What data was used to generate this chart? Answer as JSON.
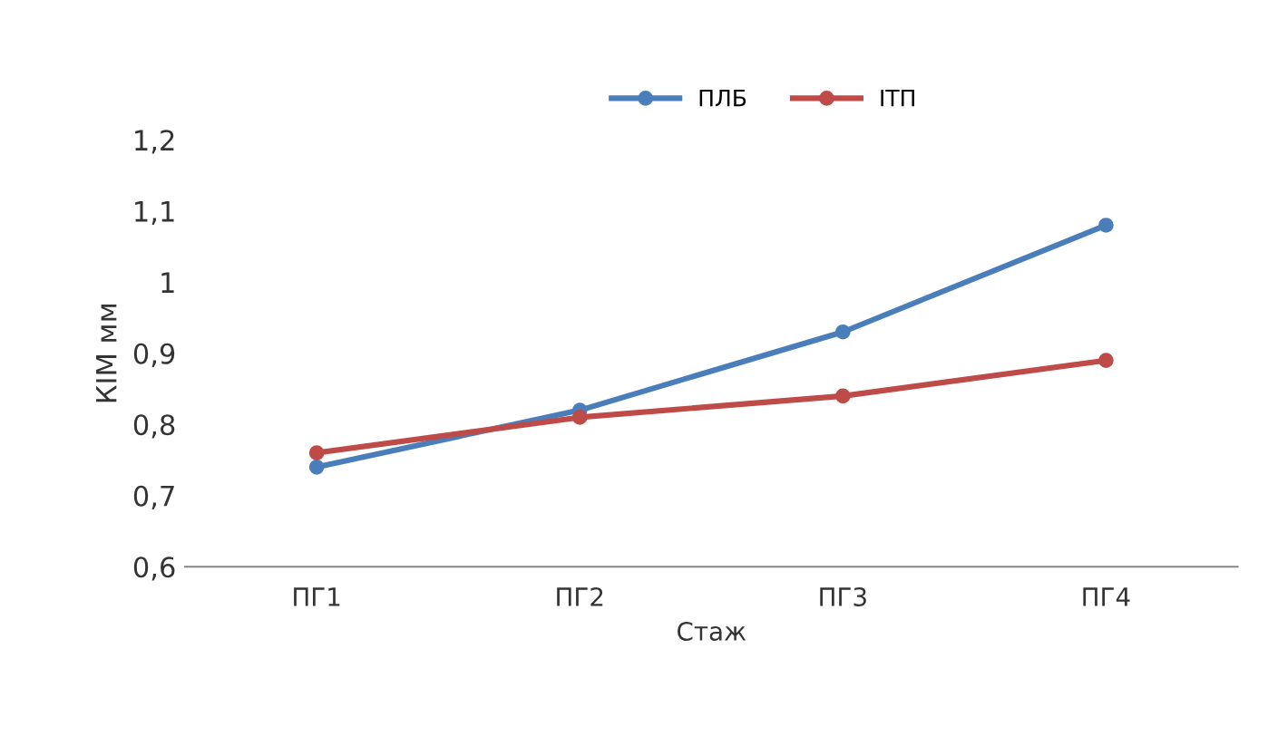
{
  "chart_data": {
    "type": "line",
    "xlabel": "Стаж",
    "ylabel": "КІМ мм",
    "categories": [
      "ПГ1",
      "ПГ2",
      "ПГ3",
      "ПГ4"
    ],
    "series": [
      {
        "name": "ПЛБ",
        "color": "#4a7ebb",
        "values": [
          0.74,
          0.82,
          0.93,
          1.08
        ]
      },
      {
        "name": "ІТП",
        "color": "#be4b48",
        "values": [
          0.76,
          0.81,
          0.84,
          0.89
        ]
      }
    ],
    "ylim": [
      0.6,
      1.2
    ],
    "yticks": [
      {
        "value": 0.6,
        "label": "0,6"
      },
      {
        "value": 0.7,
        "label": "0,7"
      },
      {
        "value": 0.8,
        "label": "0,8"
      },
      {
        "value": 0.9,
        "label": "0,9"
      },
      1,
      {
        "value": 1.1,
        "label": "1,1"
      },
      {
        "value": 1.2,
        "label": "1,2"
      }
    ],
    "marker": "circle",
    "line_style": "solid",
    "grid": false,
    "legend": "top right"
  }
}
